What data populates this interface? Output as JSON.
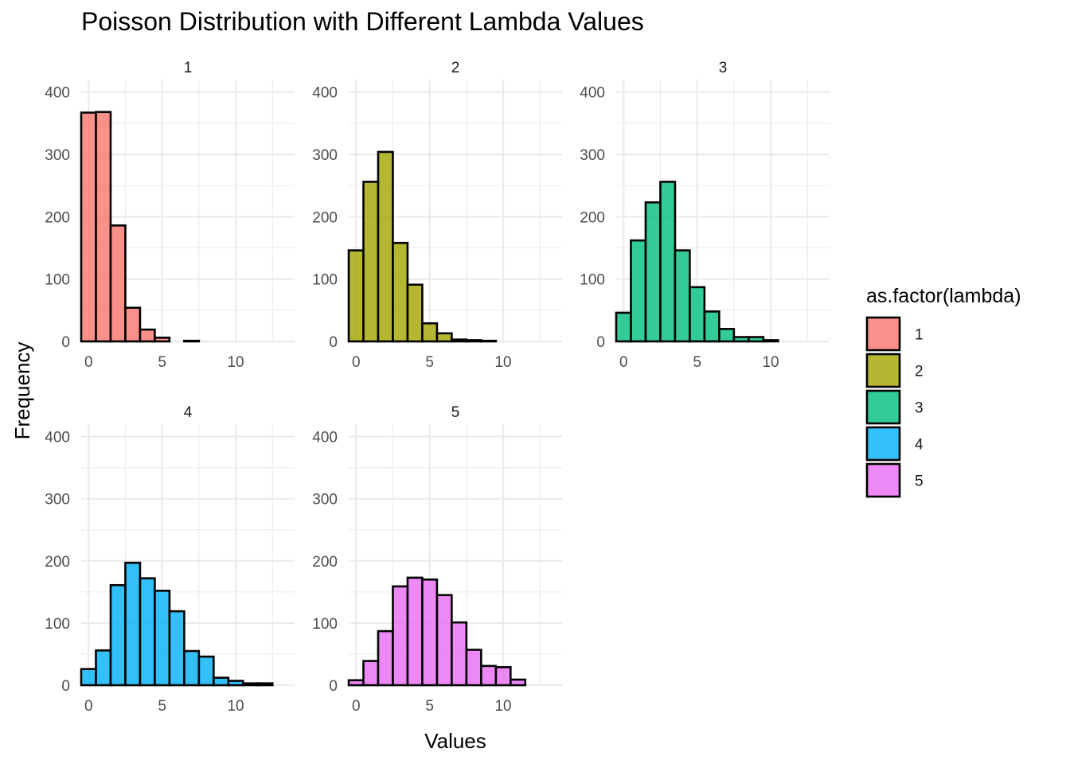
{
  "chart_data": {
    "type": "bar",
    "title": "Poisson Distribution with Different Lambda Values",
    "xlabel": "Values",
    "ylabel": "Frequency",
    "xlim": [
      -0.5,
      14
    ],
    "ylim": [
      0,
      420
    ],
    "x_ticks": [
      0,
      5,
      10
    ],
    "y_ticks": [
      0,
      100,
      200,
      300,
      400
    ],
    "grid": true,
    "legend": {
      "title": "as.factor(lambda)",
      "placement": "right",
      "entries": [
        "1",
        "2",
        "3",
        "4",
        "5"
      ]
    },
    "panels": [
      {
        "name": "1",
        "color": "#F8766D",
        "x": [
          0,
          1,
          2,
          3,
          4,
          5,
          6,
          7
        ],
        "values": [
          367,
          368,
          186,
          54,
          19,
          6,
          0,
          1
        ]
      },
      {
        "name": "2",
        "color": "#A3A500",
        "x": [
          0,
          1,
          2,
          3,
          4,
          5,
          6,
          7,
          8,
          9
        ],
        "values": [
          146,
          256,
          304,
          158,
          91,
          29,
          13,
          3,
          2,
          1
        ]
      },
      {
        "name": "3",
        "color": "#00BF7D",
        "x": [
          0,
          1,
          2,
          3,
          4,
          5,
          6,
          7,
          8,
          9,
          10
        ],
        "values": [
          46,
          162,
          223,
          256,
          146,
          87,
          48,
          20,
          7,
          7,
          2
        ]
      },
      {
        "name": "4",
        "color": "#00B0F6",
        "x": [
          0,
          1,
          2,
          3,
          4,
          5,
          6,
          7,
          8,
          9,
          10,
          11,
          12
        ],
        "values": [
          26,
          56,
          161,
          197,
          172,
          152,
          119,
          55,
          46,
          12,
          7,
          3,
          3
        ]
      },
      {
        "name": "5",
        "color": "#E76BF3",
        "x": [
          0,
          1,
          2,
          3,
          4,
          5,
          6,
          7,
          8,
          9,
          10,
          11
        ],
        "values": [
          8,
          39,
          87,
          159,
          173,
          170,
          145,
          101,
          57,
          31,
          29,
          9
        ]
      }
    ]
  }
}
